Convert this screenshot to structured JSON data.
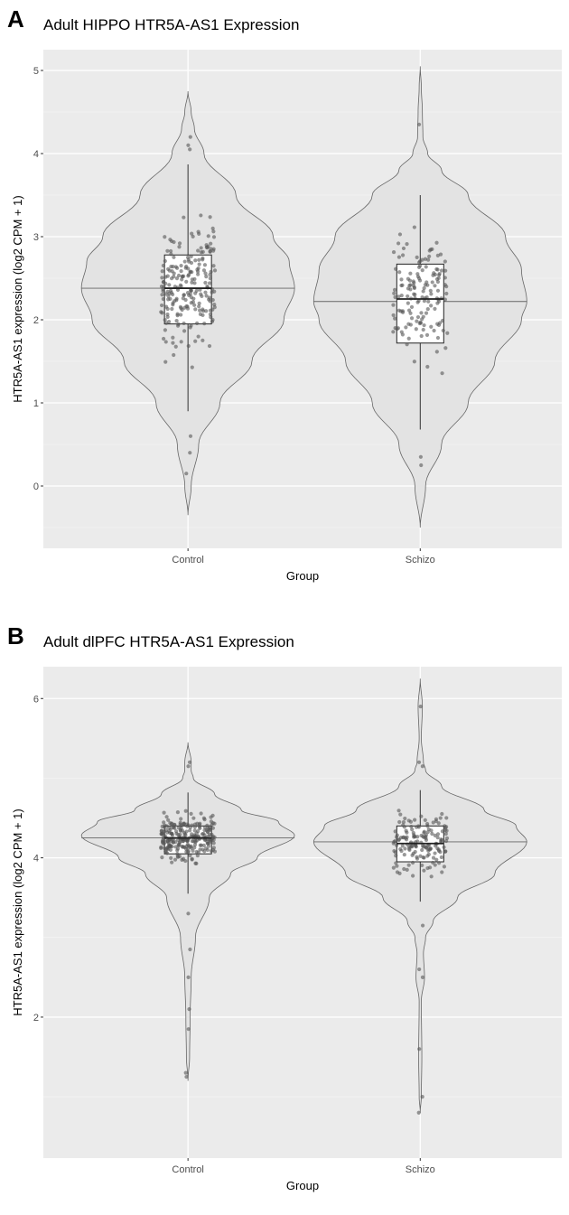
{
  "chart_data": [
    {
      "type": "violin",
      "panel_label": "A",
      "title": "Adult HIPPO HTR5A-AS1 Expression",
      "xlabel": "Group",
      "ylabel": "HTR5A-AS1 expression (log2 CPM + 1)",
      "categories": [
        "Control",
        "Schizo"
      ],
      "ylim": [
        -0.75,
        5.25
      ],
      "yticks": [
        0,
        1,
        2,
        3,
        4,
        5
      ],
      "minor_yticks": [
        -0.5,
        0.5,
        1.5,
        2.5,
        3.5,
        4.5
      ],
      "grid": true,
      "background": "#ebebeb",
      "violin_fill": "#e3e3e3",
      "box": [
        {
          "whisker_low": 0.9,
          "q1": 1.95,
          "median": 2.38,
          "q3": 2.78,
          "whisker_high": 3.87,
          "n_points": 220,
          "outliers": [
            4.05,
            4.1,
            4.2,
            0.6,
            0.4,
            0.15
          ]
        },
        {
          "whisker_low": 0.68,
          "q1": 1.72,
          "median": 2.25,
          "q3": 2.67,
          "whisker_high": 3.5,
          "n_points": 150,
          "outliers": [
            4.35,
            0.35,
            0.25
          ]
        }
      ],
      "violin_median": [
        2.38,
        2.22
      ],
      "density": [
        [
          [
            -0.35,
            0
          ],
          [
            0,
            0.03
          ],
          [
            0.5,
            0.1
          ],
          [
            1,
            0.3
          ],
          [
            1.5,
            0.6
          ],
          [
            2,
            0.9
          ],
          [
            2.38,
            1
          ],
          [
            2.7,
            0.95
          ],
          [
            3,
            0.8
          ],
          [
            3.5,
            0.45
          ],
          [
            4,
            0.15
          ],
          [
            4.3,
            0.06
          ],
          [
            4.5,
            0.03
          ],
          [
            4.75,
            0
          ]
        ],
        [
          [
            -0.5,
            0
          ],
          [
            0,
            0.05
          ],
          [
            0.5,
            0.2
          ],
          [
            1,
            0.45
          ],
          [
            1.5,
            0.7
          ],
          [
            2,
            0.95
          ],
          [
            2.22,
            1
          ],
          [
            2.6,
            0.95
          ],
          [
            3,
            0.8
          ],
          [
            3.5,
            0.45
          ],
          [
            3.8,
            0.2
          ],
          [
            4,
            0.07
          ],
          [
            4.2,
            0.025
          ],
          [
            4.5,
            0.02
          ],
          [
            4.8,
            0.01
          ],
          [
            5.05,
            0
          ]
        ]
      ]
    },
    {
      "type": "violin",
      "panel_label": "B",
      "title": "Adult dlPFC HTR5A-AS1 Expression",
      "xlabel": "Group",
      "ylabel": "HTR5A-AS1 expression (log2 CPM + 1)",
      "categories": [
        "Control",
        "Schizo"
      ],
      "ylim": [
        0.23,
        6.4
      ],
      "yticks": [
        2,
        4,
        6
      ],
      "minor_yticks": [
        1,
        3,
        5
      ],
      "grid": true,
      "background": "#ebebeb",
      "violin_fill": "#e3e3e3",
      "box": [
        {
          "whisker_low": 3.55,
          "q1": 4.05,
          "median": 4.25,
          "q3": 4.4,
          "whisker_high": 4.82,
          "n_points": 260,
          "outliers": [
            5.15,
            5.2,
            3.3,
            2.85,
            2.5,
            2.1,
            1.85,
            1.3,
            1.25
          ]
        },
        {
          "whisker_low": 3.45,
          "q1": 3.95,
          "median": 4.18,
          "q3": 4.4,
          "whisker_high": 4.85,
          "n_points": 160,
          "outliers": [
            5.9,
            5.15,
            5.2,
            3.15,
            2.6,
            2.5,
            1.6,
            1.0,
            0.8
          ]
        }
      ],
      "violin_median": [
        4.25,
        4.2
      ],
      "density": [
        [
          [
            1.2,
            0
          ],
          [
            1.5,
            0.015
          ],
          [
            2,
            0.02
          ],
          [
            2.5,
            0.03
          ],
          [
            3,
            0.07
          ],
          [
            3.5,
            0.2
          ],
          [
            3.8,
            0.4
          ],
          [
            4,
            0.65
          ],
          [
            4.28,
            1
          ],
          [
            4.45,
            0.85
          ],
          [
            4.6,
            0.5
          ],
          [
            4.8,
            0.25
          ],
          [
            5,
            0.05
          ],
          [
            5.1,
            0.03
          ],
          [
            5.2,
            0.03
          ],
          [
            5.45,
            0
          ]
        ],
        [
          [
            0.8,
            0
          ],
          [
            1,
            0.01
          ],
          [
            1.5,
            0.015
          ],
          [
            2.2,
            0.01
          ],
          [
            2.5,
            0.04
          ],
          [
            2.8,
            0.03
          ],
          [
            3,
            0.05
          ],
          [
            3.2,
            0.12
          ],
          [
            3.5,
            0.35
          ],
          [
            3.8,
            0.7
          ],
          [
            4.2,
            1
          ],
          [
            4.4,
            0.9
          ],
          [
            4.6,
            0.6
          ],
          [
            4.9,
            0.2
          ],
          [
            5.1,
            0.05
          ],
          [
            5.2,
            0.03
          ],
          [
            5.5,
            0.01
          ],
          [
            5.9,
            0.02
          ],
          [
            6.25,
            0
          ]
        ]
      ]
    }
  ]
}
